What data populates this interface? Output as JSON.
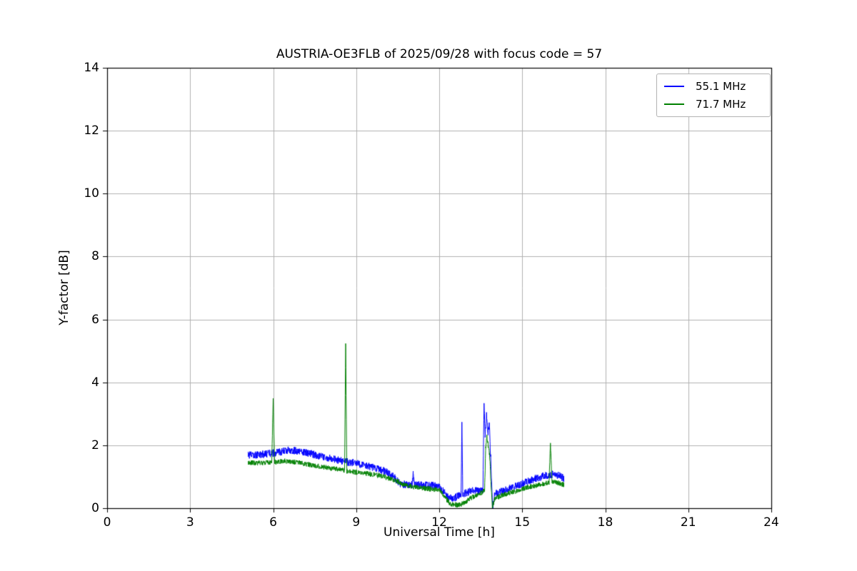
{
  "chart_data": {
    "type": "line",
    "title": "AUSTRIA-OE3FLB of 2025/09/28 with focus code = 57",
    "xlabel": "Universal Time [h]",
    "ylabel": "Y-factor [dB]",
    "xlim": [
      0,
      24
    ],
    "ylim": [
      0,
      14
    ],
    "x_ticks": [
      0,
      3,
      6,
      9,
      12,
      15,
      18,
      21,
      24
    ],
    "y_ticks": [
      0,
      2,
      4,
      6,
      8,
      10,
      12,
      14
    ],
    "grid": true,
    "grid_color": "#b0b0b0",
    "axis_color": "#000000",
    "legend_position": "upper right",
    "series": [
      {
        "name": "55.1 MHz",
        "color": "#0000ff",
        "noise": 0.12,
        "points": [
          [
            5.1,
            1.68
          ],
          [
            5.4,
            1.7
          ],
          [
            5.7,
            1.72
          ],
          [
            6.0,
            1.75
          ],
          [
            6.3,
            1.8
          ],
          [
            6.6,
            1.85
          ],
          [
            6.9,
            1.82
          ],
          [
            7.2,
            1.76
          ],
          [
            7.5,
            1.7
          ],
          [
            7.8,
            1.63
          ],
          [
            8.1,
            1.57
          ],
          [
            8.4,
            1.52
          ],
          [
            8.7,
            1.47
          ],
          [
            9.0,
            1.42
          ],
          [
            9.3,
            1.37
          ],
          [
            9.6,
            1.3
          ],
          [
            9.9,
            1.22
          ],
          [
            10.1,
            1.15
          ],
          [
            10.35,
            1.0
          ],
          [
            10.55,
            0.8
          ],
          [
            10.9,
            0.72
          ],
          [
            11.02,
            0.75
          ],
          [
            11.06,
            1.1
          ],
          [
            11.1,
            0.75
          ],
          [
            11.5,
            0.73
          ],
          [
            11.95,
            0.72
          ],
          [
            12.15,
            0.55
          ],
          [
            12.3,
            0.35
          ],
          [
            12.5,
            0.3
          ],
          [
            12.7,
            0.4
          ],
          [
            12.79,
            0.45
          ],
          [
            12.82,
            2.8
          ],
          [
            12.85,
            0.45
          ],
          [
            13.0,
            0.5
          ],
          [
            13.2,
            0.55
          ],
          [
            13.45,
            0.55
          ],
          [
            13.58,
            0.6
          ],
          [
            13.62,
            3.3
          ],
          [
            13.66,
            2.3
          ],
          [
            13.71,
            2.95
          ],
          [
            13.76,
            2.4
          ],
          [
            13.81,
            2.7
          ],
          [
            13.86,
            1.6
          ],
          [
            13.93,
            0.02
          ],
          [
            14.0,
            0.45
          ],
          [
            14.3,
            0.55
          ],
          [
            14.6,
            0.65
          ],
          [
            14.9,
            0.75
          ],
          [
            15.2,
            0.85
          ],
          [
            15.5,
            0.95
          ],
          [
            15.8,
            1.02
          ],
          [
            16.1,
            1.08
          ],
          [
            16.3,
            1.05
          ],
          [
            16.5,
            0.95
          ]
        ]
      },
      {
        "name": "71.7 MHz",
        "color": "#008000",
        "noise": 0.08,
        "points": [
          [
            5.1,
            1.45
          ],
          [
            5.5,
            1.44
          ],
          [
            5.95,
            1.45
          ],
          [
            6.0,
            3.5
          ],
          [
            6.05,
            1.46
          ],
          [
            6.4,
            1.5
          ],
          [
            6.8,
            1.46
          ],
          [
            7.2,
            1.4
          ],
          [
            7.6,
            1.34
          ],
          [
            8.0,
            1.28
          ],
          [
            8.3,
            1.24
          ],
          [
            8.58,
            1.2
          ],
          [
            8.62,
            5.2
          ],
          [
            8.66,
            1.18
          ],
          [
            9.0,
            1.14
          ],
          [
            9.4,
            1.1
          ],
          [
            9.8,
            1.04
          ],
          [
            10.2,
            0.95
          ],
          [
            10.5,
            0.85
          ],
          [
            10.8,
            0.72
          ],
          [
            11.2,
            0.66
          ],
          [
            11.6,
            0.62
          ],
          [
            12.0,
            0.58
          ],
          [
            12.2,
            0.35
          ],
          [
            12.4,
            0.14
          ],
          [
            12.7,
            0.1
          ],
          [
            12.9,
            0.16
          ],
          [
            13.1,
            0.3
          ],
          [
            13.35,
            0.42
          ],
          [
            13.55,
            0.5
          ],
          [
            13.64,
            0.6
          ],
          [
            13.68,
            1.9
          ],
          [
            13.72,
            2.3
          ],
          [
            13.77,
            2.0
          ],
          [
            13.82,
            1.7
          ],
          [
            13.87,
            0.8
          ],
          [
            13.92,
            0.03
          ],
          [
            14.0,
            0.3
          ],
          [
            14.3,
            0.42
          ],
          [
            14.6,
            0.5
          ],
          [
            14.9,
            0.58
          ],
          [
            15.2,
            0.66
          ],
          [
            15.5,
            0.72
          ],
          [
            15.8,
            0.78
          ],
          [
            15.97,
            0.82
          ],
          [
            16.02,
            2.1
          ],
          [
            16.07,
            0.85
          ],
          [
            16.25,
            0.82
          ],
          [
            16.5,
            0.75
          ]
        ]
      }
    ]
  }
}
